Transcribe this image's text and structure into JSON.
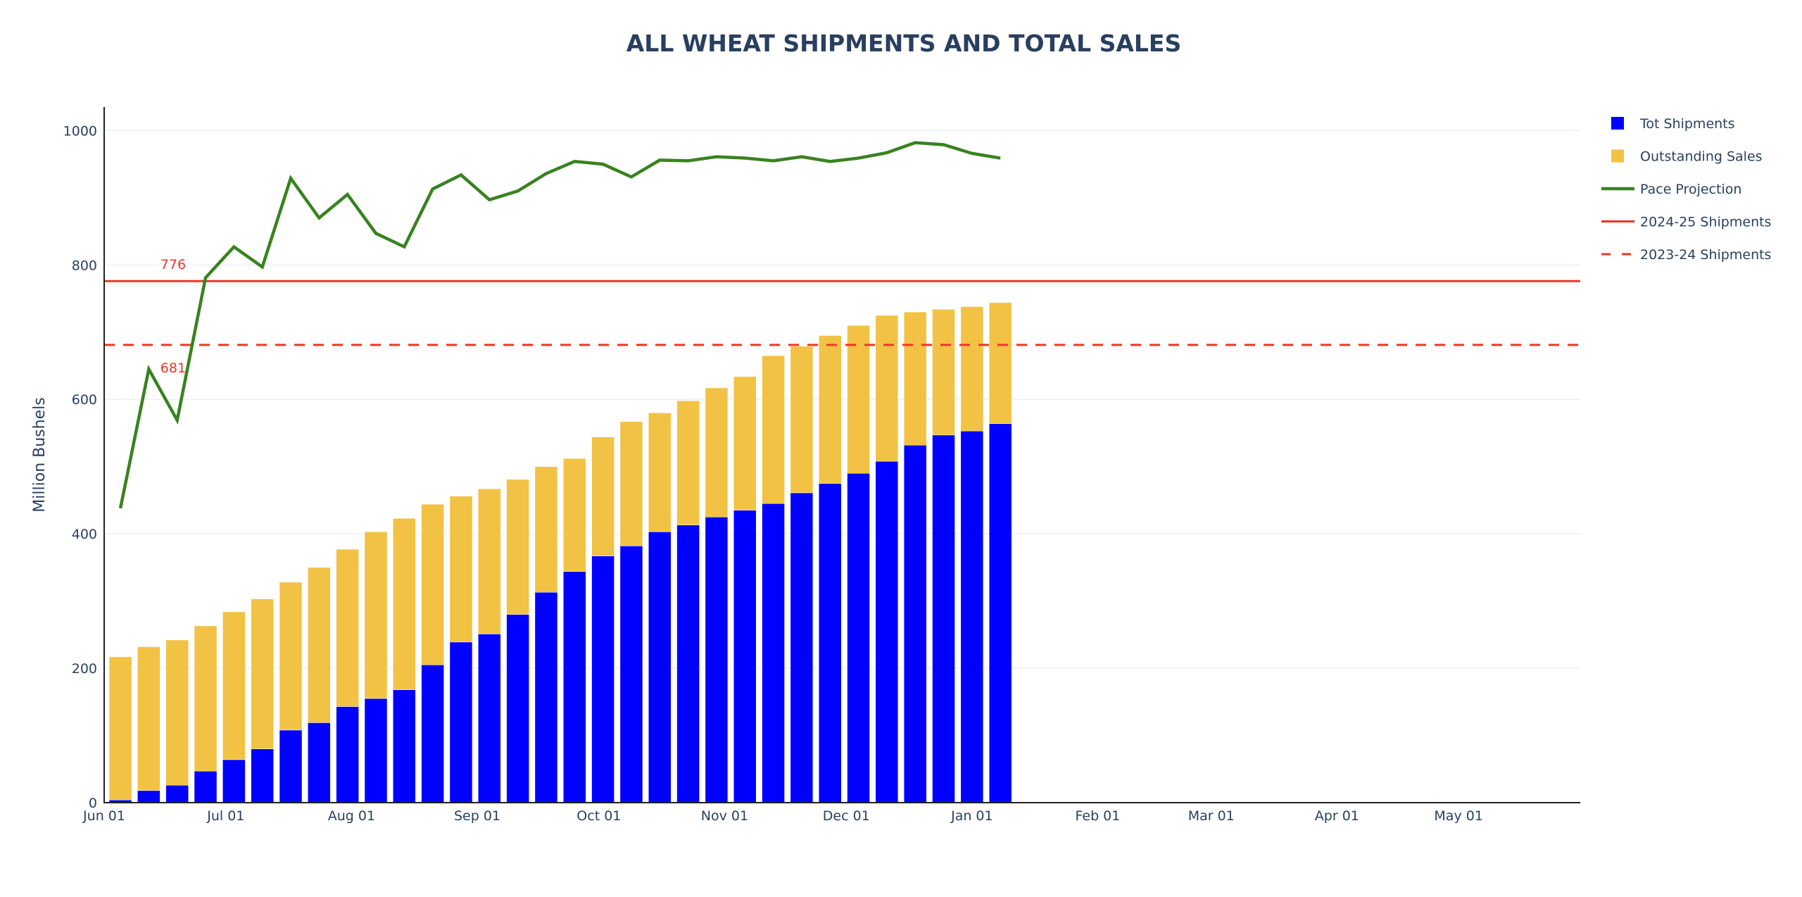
{
  "chart_data": {
    "type": "bar",
    "barmode": "stack",
    "title": "ALL WHEAT SHIPMENTS AND TOTAL SALES",
    "xlabel": "",
    "ylabel": "Million Bushels",
    "ylim": [
      0,
      1035
    ],
    "xlim": [
      "2024-06-01",
      "2025-05-31"
    ],
    "grid": true,
    "legend_position": "right",
    "yticks": [
      0,
      200,
      400,
      600,
      800,
      1000
    ],
    "xticks": [
      {
        "date": "2024-06-01",
        "label": "Jun 01"
      },
      {
        "date": "2024-07-01",
        "label": "Jul 01"
      },
      {
        "date": "2024-08-01",
        "label": "Aug 01"
      },
      {
        "date": "2024-09-01",
        "label": "Sep 01"
      },
      {
        "date": "2024-10-01",
        "label": "Oct 01"
      },
      {
        "date": "2024-11-01",
        "label": "Nov 01"
      },
      {
        "date": "2024-12-01",
        "label": "Dec 01"
      },
      {
        "date": "2025-01-01",
        "label": "Jan 01"
      },
      {
        "date": "2025-02-01",
        "label": "Feb 01"
      },
      {
        "date": "2025-03-01",
        "label": "Mar 01"
      },
      {
        "date": "2025-04-01",
        "label": "Apr 01"
      },
      {
        "date": "2025-05-01",
        "label": "May 01"
      }
    ],
    "x": [
      "2024-06-05",
      "2024-06-12",
      "2024-06-19",
      "2024-06-26",
      "2024-07-03",
      "2024-07-10",
      "2024-07-17",
      "2024-07-24",
      "2024-07-31",
      "2024-08-07",
      "2024-08-14",
      "2024-08-21",
      "2024-08-28",
      "2024-09-04",
      "2024-09-11",
      "2024-09-18",
      "2024-09-25",
      "2024-10-02",
      "2024-10-09",
      "2024-10-16",
      "2024-10-23",
      "2024-10-30",
      "2024-11-06",
      "2024-11-13",
      "2024-11-20",
      "2024-11-27",
      "2024-12-04",
      "2024-12-11",
      "2024-12-18",
      "2024-12-25",
      "2025-01-01",
      "2025-01-08"
    ],
    "series": [
      {
        "name": "Tot Shipments",
        "type": "bar",
        "color": "#0000ff",
        "values": [
          4,
          18,
          26,
          47,
          64,
          80,
          108,
          119,
          143,
          155,
          168,
          205,
          239,
          251,
          280,
          313,
          344,
          367,
          382,
          403,
          413,
          425,
          435,
          445,
          461,
          475,
          490,
          508,
          532,
          547,
          553,
          564
        ]
      },
      {
        "name": "Outstanding Sales",
        "type": "bar",
        "color": "#f2c244",
        "values": [
          213,
          214,
          216,
          216,
          220,
          223,
          220,
          231,
          234,
          248,
          255,
          239,
          217,
          216,
          201,
          187,
          168,
          177,
          185,
          177,
          185,
          192,
          199,
          220,
          218,
          220,
          220,
          217,
          198,
          187,
          185,
          180
        ]
      },
      {
        "name": "Pace Projection",
        "type": "line",
        "color": "#38821f",
        "values": [
          438,
          645,
          569,
          781,
          827,
          797,
          929,
          870,
          905,
          847,
          827,
          913,
          934,
          897,
          910,
          936,
          954,
          950,
          931,
          956,
          955,
          961,
          959,
          955,
          961,
          954,
          959,
          967,
          982,
          979,
          966,
          959
        ]
      },
      {
        "name": "2024-25 Shipments",
        "type": "hline",
        "color": "#ef3526",
        "dash": "solid",
        "value": 776
      },
      {
        "name": "2023-24 Shipments",
        "type": "hline",
        "color": "#ef3526",
        "dash": "dash",
        "value": 681
      }
    ],
    "annotations": [
      {
        "text": "776",
        "x": "2024-06-18",
        "y": 776,
        "color": "#ef3526"
      },
      {
        "text": "681",
        "x": "2024-06-18",
        "y": 681,
        "color": "#ef3526"
      }
    ]
  }
}
